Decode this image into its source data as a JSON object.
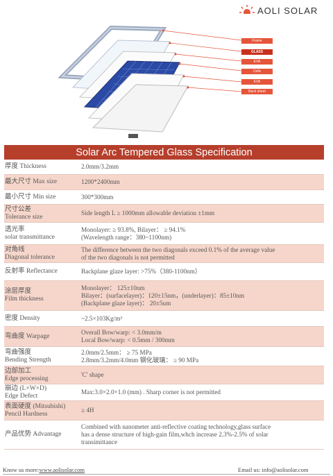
{
  "brand": {
    "name": "AOLI SOLAR"
  },
  "diagram": {
    "labels": [
      "Frame",
      "GLASS",
      "EVA",
      "Cells",
      "EVA",
      "Back sheet"
    ]
  },
  "title": "Solar Arc Tempered Glass Specification",
  "rows": [
    {
      "name": [
        "厚度 Thickness"
      ],
      "value": [
        "2.0mm/3.2mm"
      ]
    },
    {
      "name": [
        "最大尺寸 Max size"
      ],
      "value": [
        "1200*2400mm"
      ]
    },
    {
      "name": [
        "最小尺寸 Min size"
      ],
      "value": [
        "300*300mm"
      ]
    },
    {
      "name": [
        "尺寸公差",
        "Tolerance size"
      ],
      "value": [
        "Side length L ≥ 1000mm allowable deviation ±1mm"
      ]
    },
    {
      "name": [
        "透光率",
        "solar transmittance"
      ],
      "value": [
        "Monolayer: ≥ 93.8%, Bilayer： ≥ 94.1%",
        "(Wavelength range：380~1100nm)"
      ]
    },
    {
      "name": [
        "对角线",
        "Diagonal tolerance"
      ],
      "value": [
        "The difference between the two diagonals exceed 0.1% of the average value",
        "of the two diagonals is not permitted"
      ]
    },
    {
      "name": [
        "反射率 Reflectance"
      ],
      "value": [
        "Backplane glaze layer: >75%（380-1100nm）"
      ]
    },
    {
      "name": [
        "涂层厚度",
        "Film thickness"
      ],
      "value": [
        "Monolayer：  125±10nm",
        "Bilayer：(surfacelayer)：120±15nm，(underlayer)：85±10nm",
        "(Backplane glaze layer)： 20±5um"
      ]
    },
    {
      "name": [
        "密度 Density"
      ],
      "value": [
        "~2.5×103Kg/m³"
      ]
    },
    {
      "name": [
        "弯曲度 Warpage"
      ],
      "value": [
        "Overall Bow/warp: < 3.0mm/m",
        "Local Bow/warp: < 0.5mm / 300mm"
      ]
    },
    {
      "name": [
        "弯曲强度",
        "Bending Strength"
      ],
      "value": [
        "2.0mm/2.5mm：   ≥ 75 MPa",
        "2.8mm/3.2mm/4.0mm 钢化玻璃： ≥ 90 MPa"
      ]
    },
    {
      "name": [
        "边部加工",
        "Edge processing"
      ],
      "value": [
        "'C' shape"
      ]
    },
    {
      "name": [
        "崩边 (L×W×D)",
        "Edge Defect"
      ],
      "value": [
        "Max:3.0×2.0×1.0 (mm) . Sharp corner is not permitted"
      ]
    },
    {
      "name": [
        "表面硬度 (Mitsubishi)",
        "Pencil Hardness"
      ],
      "value": [
        "≥ 4H"
      ]
    },
    {
      "name": [
        "产品优势 Advantage"
      ],
      "value": [
        "Combined with nanometer anti-reflective coating technology,glass surface",
        "has a dense structure of high-gain film,whch increase 2.3%-2.5% of solar",
        "transimittance"
      ]
    }
  ],
  "footer": {
    "left_prefix": "Know us more:",
    "website": "www.aolisolar.com",
    "email": "Email us: info@aolisolar.com"
  }
}
